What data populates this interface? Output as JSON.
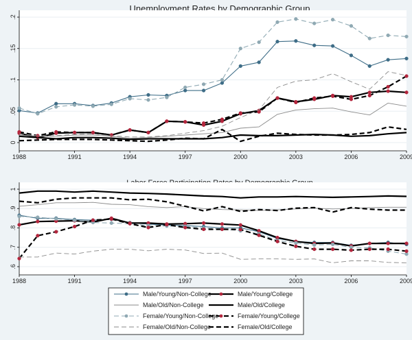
{
  "chart_data": [
    {
      "type": "line",
      "title": "Unemployment Rates by Demographic Group",
      "x": [
        1988,
        1989,
        1990,
        1991,
        1992,
        1993,
        1994,
        1995,
        1996,
        1997,
        1998,
        1999,
        2000,
        2001,
        2002,
        2003,
        2004,
        2005,
        2006,
        2007,
        2008,
        2009
      ],
      "xticks": [
        "1988",
        "1991",
        "1994",
        "1997",
        "2000",
        "2003",
        "2006",
        "2009"
      ],
      "xtick_values": [
        1988,
        1991,
        1994,
        1997,
        2000,
        2003,
        2006,
        2009
      ],
      "xlim": [
        1988,
        2009
      ],
      "ylim": [
        0,
        0.2
      ],
      "yticks": [
        "0",
        ".05",
        ".1",
        ".15",
        ".2"
      ],
      "ytick_values": [
        0,
        0.05,
        0.1,
        0.15,
        0.2
      ],
      "grid": true,
      "series": [
        {
          "name": "Male/Young/Non-College",
          "values": [
            0.051,
            0.047,
            0.062,
            0.062,
            0.059,
            0.063,
            0.073,
            0.076,
            0.075,
            0.083,
            0.083,
            0.095,
            0.122,
            0.128,
            0.161,
            0.162,
            0.155,
            0.154,
            0.139,
            0.122,
            0.132,
            0.134
          ]
        },
        {
          "name": "Male/Young/College",
          "values": [
            0.015,
            0.008,
            0.015,
            0.016,
            0.016,
            0.012,
            0.02,
            0.016,
            0.034,
            0.033,
            0.028,
            0.034,
            0.046,
            0.051,
            0.071,
            0.065,
            0.069,
            0.075,
            0.073,
            0.08,
            0.082,
            0.08
          ]
        },
        {
          "name": "Male/Old/Non-College",
          "values": [
            0.012,
            0.01,
            0.01,
            0.012,
            0.012,
            0.01,
            0.007,
            0.008,
            0.01,
            0.012,
            0.014,
            0.016,
            0.023,
            0.025,
            0.045,
            0.052,
            0.054,
            0.055,
            0.049,
            0.044,
            0.063,
            0.058
          ]
        },
        {
          "name": "Male/Old/College",
          "values": [
            0.01,
            0.008,
            0.006,
            0.008,
            0.008,
            0.007,
            0.005,
            0.006,
            0.006,
            0.006,
            0.006,
            0.008,
            0.012,
            0.011,
            0.011,
            0.012,
            0.013,
            0.012,
            0.01,
            0.011,
            0.014,
            0.016
          ]
        },
        {
          "name": "Female/Young/Non-College",
          "values": [
            0.055,
            0.046,
            0.057,
            0.06,
            0.058,
            0.061,
            0.07,
            0.068,
            0.072,
            0.088,
            0.093,
            0.1,
            0.15,
            0.16,
            0.192,
            0.197,
            0.19,
            0.196,
            0.186,
            0.166,
            0.171,
            0.169
          ]
        },
        {
          "name": "Female/Young/College",
          "values": [
            0.017,
            0.011,
            0.017,
            0.016,
            0.016,
            0.012,
            0.02,
            0.016,
            0.034,
            0.033,
            0.031,
            0.037,
            0.047,
            0.049,
            0.071,
            0.064,
            0.071,
            0.074,
            0.069,
            0.075,
            0.089,
            0.106
          ]
        },
        {
          "name": "Female/Old/Non-College",
          "values": [
            0.014,
            0.011,
            0.011,
            0.013,
            0.014,
            0.011,
            0.009,
            0.009,
            0.011,
            0.015,
            0.019,
            0.026,
            0.04,
            0.052,
            0.088,
            0.098,
            0.1,
            0.11,
            0.097,
            0.085,
            0.113,
            0.107
          ]
        },
        {
          "name": "Female/Old/College",
          "values": [
            0.003,
            0.004,
            0.005,
            0.005,
            0.005,
            0.004,
            0.003,
            0.002,
            0.004,
            0.007,
            0.006,
            0.021,
            0.002,
            0.01,
            0.015,
            0.013,
            0.012,
            0.012,
            0.013,
            0.016,
            0.025,
            0.021
          ]
        }
      ]
    },
    {
      "type": "line",
      "title": "Labor Force Participation Rates by Demographic Group",
      "x": [
        1988,
        1989,
        1990,
        1991,
        1992,
        1993,
        1994,
        1995,
        1996,
        1997,
        1998,
        1999,
        2000,
        2001,
        2002,
        2003,
        2004,
        2005,
        2006,
        2007,
        2008,
        2009
      ],
      "xticks": [
        "1988",
        "1991",
        "1994",
        "1997",
        "2000",
        "2003",
        "2006",
        "2009"
      ],
      "xtick_values": [
        1988,
        1991,
        1994,
        1997,
        2000,
        2003,
        2006,
        2009
      ],
      "xlim": [
        1988,
        2009
      ],
      "ylim": [
        0.6,
        1.0
      ],
      "yticks": [
        ".6",
        ".7",
        ".8",
        ".9",
        "1"
      ],
      "ytick_values": [
        0.6,
        0.7,
        0.8,
        0.9,
        1.0
      ],
      "grid": true,
      "series": [
        {
          "name": "Male/Young/Non-College",
          "values": [
            0.865,
            0.85,
            0.85,
            0.843,
            0.84,
            0.845,
            0.827,
            0.82,
            0.815,
            0.812,
            0.807,
            0.8,
            0.8,
            0.78,
            0.745,
            0.73,
            0.725,
            0.725,
            0.71,
            0.72,
            0.725,
            0.715
          ]
        },
        {
          "name": "Male/Young/College",
          "values": [
            0.816,
            0.833,
            0.835,
            0.837,
            0.83,
            0.85,
            0.825,
            0.825,
            0.82,
            0.822,
            0.825,
            0.82,
            0.815,
            0.785,
            0.75,
            0.73,
            0.72,
            0.722,
            0.707,
            0.72,
            0.72,
            0.72
          ]
        },
        {
          "name": "Male/Old/Non-College",
          "values": [
            0.912,
            0.92,
            0.93,
            0.93,
            0.932,
            0.922,
            0.92,
            0.91,
            0.905,
            0.91,
            0.9,
            0.895,
            0.893,
            0.89,
            0.893,
            0.898,
            0.902,
            0.898,
            0.9,
            0.905,
            0.907,
            0.907
          ]
        },
        {
          "name": "Male/Old/College",
          "values": [
            0.98,
            0.99,
            0.99,
            0.985,
            0.99,
            0.985,
            0.98,
            0.978,
            0.975,
            0.97,
            0.965,
            0.962,
            0.955,
            0.96,
            0.96,
            0.962,
            0.96,
            0.958,
            0.96,
            0.962,
            0.965,
            0.963
          ]
        },
        {
          "name": "Female/Young/Non-College",
          "values": [
            0.86,
            0.855,
            0.847,
            0.84,
            0.828,
            0.825,
            0.822,
            0.812,
            0.81,
            0.808,
            0.8,
            0.795,
            0.785,
            0.77,
            0.735,
            0.722,
            0.712,
            0.715,
            0.7,
            0.697,
            0.68,
            0.665
          ]
        },
        {
          "name": "Female/Young/College",
          "values": [
            0.642,
            0.76,
            0.78,
            0.807,
            0.84,
            0.846,
            0.822,
            0.802,
            0.817,
            0.802,
            0.793,
            0.793,
            0.792,
            0.762,
            0.73,
            0.705,
            0.69,
            0.69,
            0.685,
            0.69,
            0.69,
            0.68
          ]
        },
        {
          "name": "Female/Old/Non-College",
          "values": [
            0.65,
            0.65,
            0.67,
            0.665,
            0.68,
            0.69,
            0.69,
            0.682,
            0.69,
            0.686,
            0.668,
            0.67,
            0.638,
            0.64,
            0.64,
            0.638,
            0.64,
            0.62,
            0.63,
            0.63,
            0.622,
            0.62
          ]
        },
        {
          "name": "Female/Old/College",
          "values": [
            0.938,
            0.93,
            0.948,
            0.955,
            0.955,
            0.955,
            0.945,
            0.948,
            0.935,
            0.912,
            0.888,
            0.91,
            0.885,
            0.895,
            0.89,
            0.902,
            0.905,
            0.882,
            0.905,
            0.897,
            0.892,
            0.892
          ]
        }
      ]
    }
  ],
  "legend": {
    "placement": "bottom",
    "items": [
      "Male/Young/Non-College",
      "Male/Young/College",
      "Male/Old/Non-College",
      "Male/Old/College",
      "Female/Young/Non-College",
      "Female/Young/College",
      "Female/Old/Non-College",
      "Female/Old/College"
    ]
  },
  "colors": {
    "outer_bg": "#eef3f6",
    "plot_bg": "#ffffff",
    "grid": "#e8eef2",
    "male_young_noncollege": "#3e6d87",
    "male_young_college": "#b3263d",
    "male_old_noncollege": "#8a8a8a",
    "male_old_college": "#000000",
    "female_young_noncollege": "#8fa9b3",
    "female_young_college": "#b3263d",
    "female_old_noncollege": "#8a8a8a",
    "female_old_college": "#000000"
  }
}
